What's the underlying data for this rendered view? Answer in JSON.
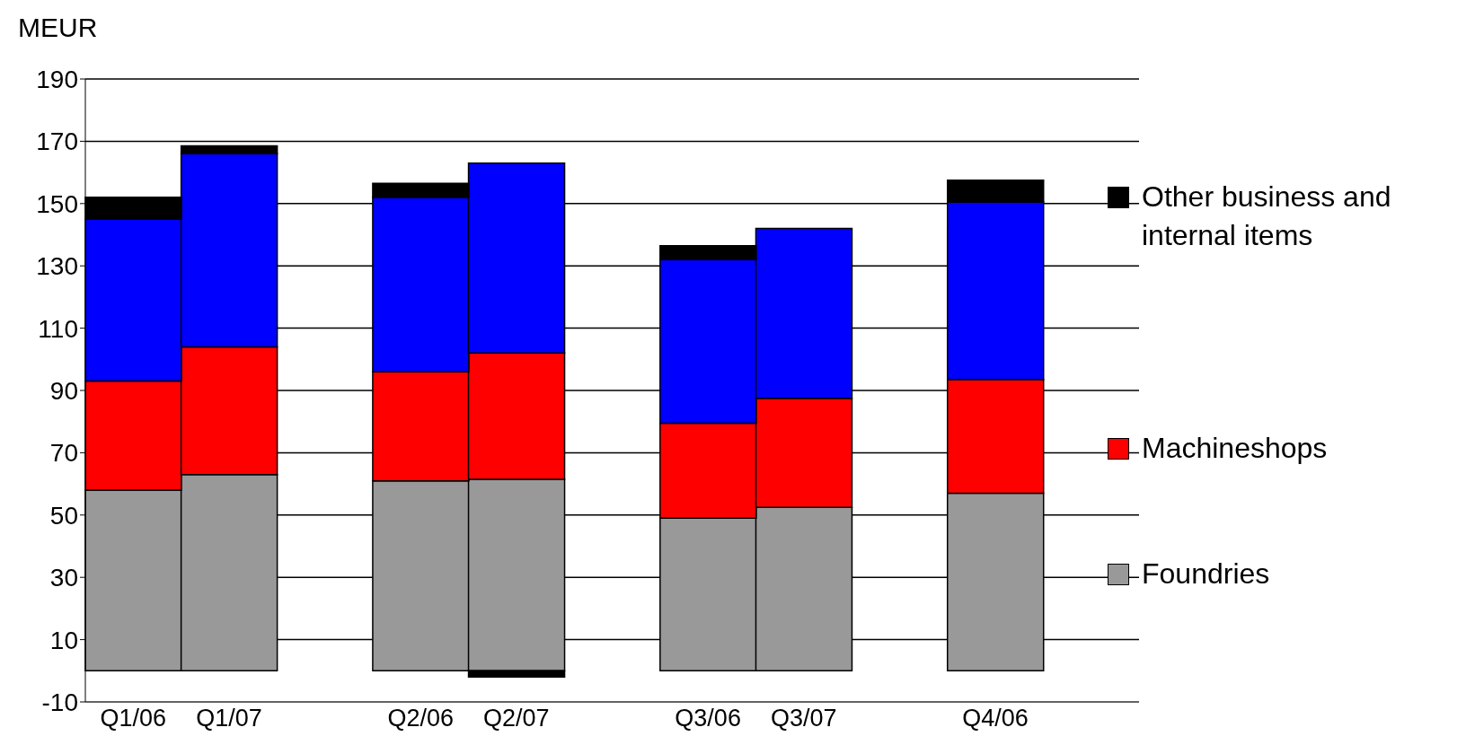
{
  "chart_data": {
    "type": "bar",
    "stacked": true,
    "ylabel": "MEUR",
    "categories": [
      "Q1/06",
      "Q1/07",
      null,
      "Q2/06",
      "Q2/07",
      null,
      "Q3/06",
      "Q3/07",
      null,
      "Q4/06",
      null
    ],
    "series": [
      {
        "name": "Foundries",
        "color": "#999999",
        "values": [
          58,
          63,
          null,
          61,
          61.5,
          null,
          49,
          52.5,
          null,
          57,
          null
        ]
      },
      {
        "name": "Machineshops",
        "color": "#ff0000",
        "values": [
          35,
          41,
          null,
          35,
          40.5,
          null,
          30.5,
          35,
          null,
          36.5,
          null
        ]
      },
      {
        "color": "#0000ff",
        "values": [
          52,
          62,
          null,
          56,
          61,
          null,
          52.5,
          54.5,
          null,
          57,
          null
        ]
      },
      {
        "name": "Other business and internal items",
        "color": "#000000",
        "values": [
          7,
          2.5,
          null,
          4.5,
          -2,
          null,
          4.5,
          null,
          null,
          7,
          null
        ]
      }
    ],
    "ylim": [
      -10,
      190
    ],
    "yticks": [
      -10,
      10,
      30,
      50,
      70,
      90,
      110,
      130,
      150,
      170,
      190
    ],
    "grid": "y",
    "legend": "right"
  }
}
